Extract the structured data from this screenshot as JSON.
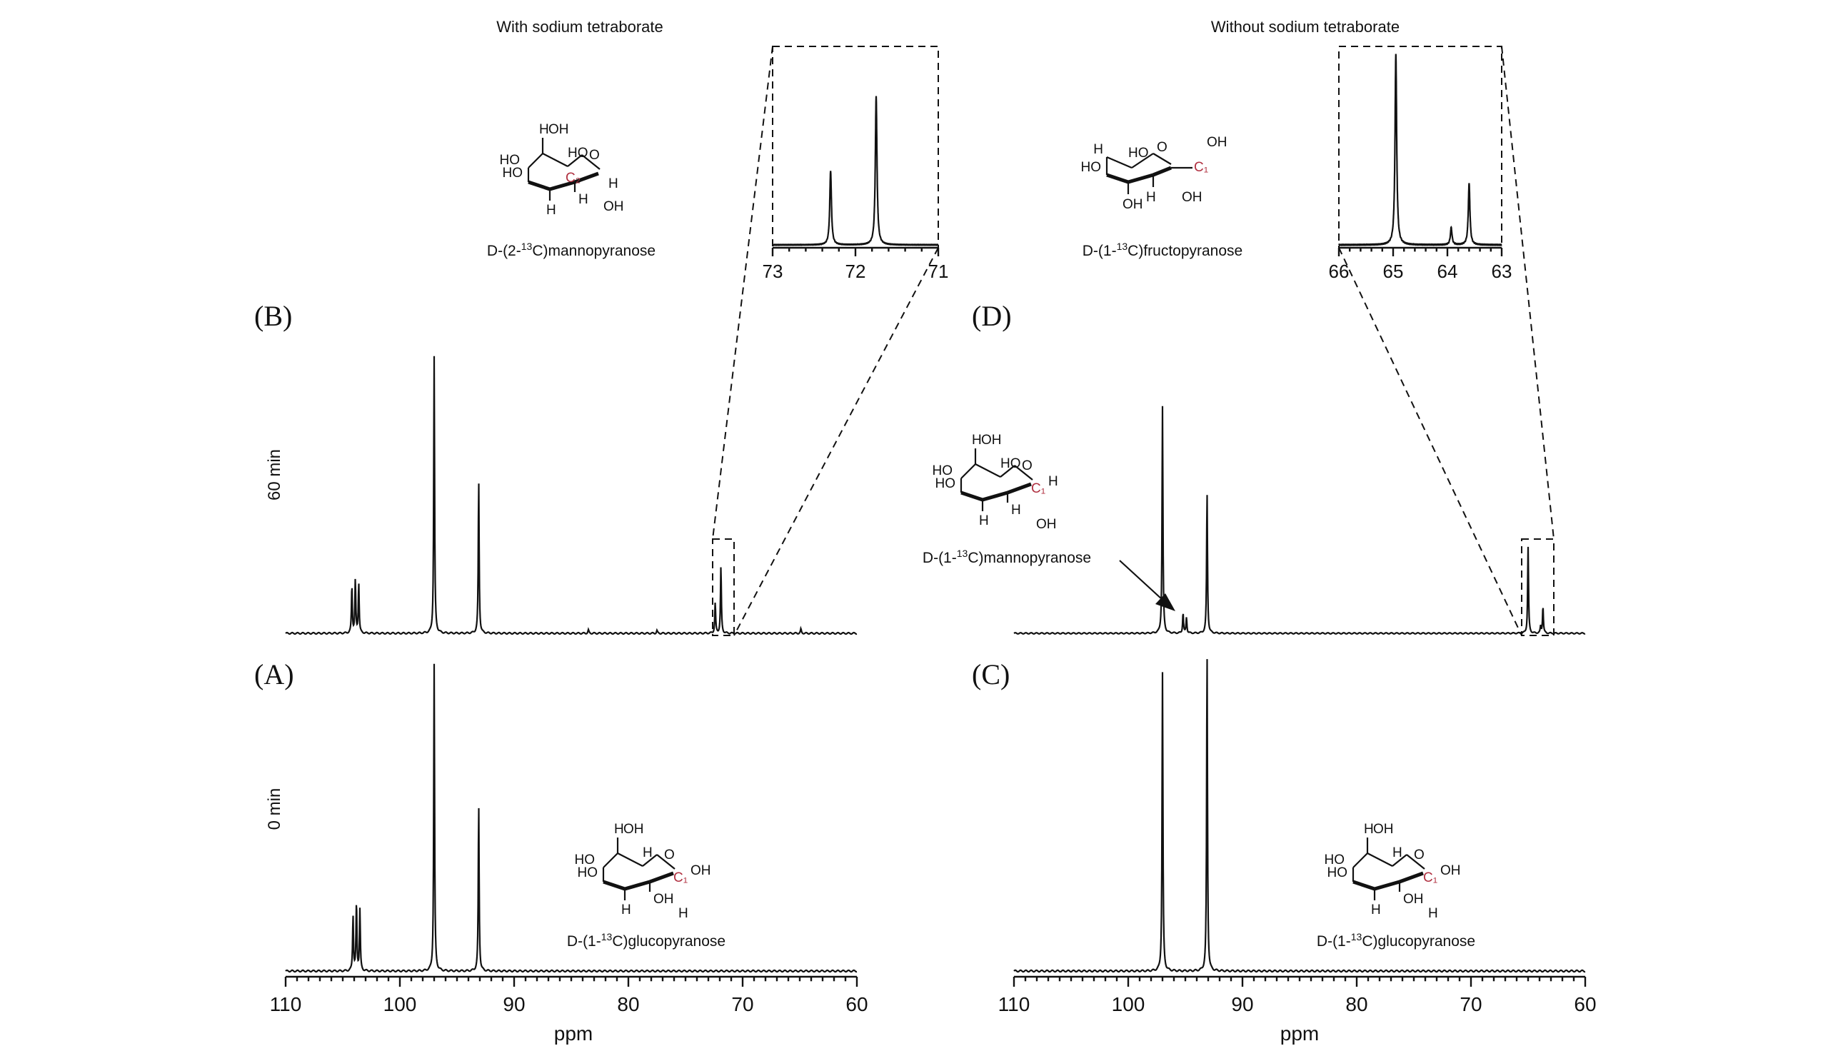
{
  "headers": {
    "left": "With sodium tetraborate",
    "right": "Without sodium tetraborate"
  },
  "time_labels": {
    "top": "60 min",
    "bottom": "0 min"
  },
  "molecules": {
    "B": {
      "prefix": "D-(2-",
      "sup": "13",
      "suffix": "C)mannopyranose",
      "atom": "C2"
    },
    "D": {
      "prefix": "D-(1-",
      "sup": "13",
      "suffix": "C)fructopyranose",
      "atom": "C1"
    },
    "D2": {
      "prefix": "D-(1-",
      "sup": "13",
      "suffix": "C)mannopyranose",
      "atom": "C1"
    },
    "A": {
      "prefix": "D-(1-",
      "sup": "13",
      "suffix": "C)glucopyranose",
      "atom": "C1"
    },
    "C": {
      "prefix": "D-(1-",
      "sup": "13",
      "suffix": "C)glucopyranose",
      "atom": "C1"
    }
  },
  "chart_data": [
    {
      "type": "line",
      "panel": "B",
      "label": "(B)",
      "xlabel": "",
      "xlim": [
        110,
        60
      ],
      "x_reversed": true,
      "peaks": [
        {
          "x": 104.2,
          "y": 0.17
        },
        {
          "x": 103.9,
          "y": 0.19
        },
        {
          "x": 103.6,
          "y": 0.18
        },
        {
          "x": 97.0,
          "y": 1.0
        },
        {
          "x": 93.1,
          "y": 0.55
        },
        {
          "x": 72.4,
          "y": 0.11
        },
        {
          "x": 71.9,
          "y": 0.24
        },
        {
          "x": 83.5,
          "y": 0.012
        },
        {
          "x": 77.5,
          "y": 0.01
        },
        {
          "x": 64.9,
          "y": 0.015
        }
      ]
    },
    {
      "type": "line",
      "panel": "B-inset",
      "xlim": [
        73,
        71
      ],
      "ticks": [
        73,
        72,
        71
      ],
      "x_reversed": true,
      "peaks": [
        {
          "x": 72.3,
          "y": 0.5
        },
        {
          "x": 71.75,
          "y": 1.0
        }
      ]
    },
    {
      "type": "line",
      "panel": "A",
      "label": "(A)",
      "xlabel": "ppm",
      "xlim": [
        110,
        60
      ],
      "x_reversed": true,
      "ticks": [
        110,
        100,
        90,
        80,
        70,
        60
      ],
      "peaks": [
        {
          "x": 104.1,
          "y": 0.18
        },
        {
          "x": 103.8,
          "y": 0.22
        },
        {
          "x": 103.5,
          "y": 0.2
        },
        {
          "x": 97.0,
          "y": 1.0
        },
        {
          "x": 93.1,
          "y": 0.54
        }
      ]
    },
    {
      "type": "line",
      "panel": "D",
      "label": "(D)",
      "xlabel": "",
      "xlim": [
        110,
        60
      ],
      "x_reversed": true,
      "peaks": [
        {
          "x": 97.0,
          "y": 1.0
        },
        {
          "x": 95.2,
          "y": 0.09
        },
        {
          "x": 94.9,
          "y": 0.07
        },
        {
          "x": 93.1,
          "y": 0.62
        },
        {
          "x": 65.0,
          "y": 0.38
        },
        {
          "x": 63.7,
          "y": 0.12
        },
        {
          "x": 63.9,
          "y": 0.03
        }
      ]
    },
    {
      "type": "line",
      "panel": "D-inset",
      "xlim": [
        66,
        63
      ],
      "ticks": [
        66,
        65,
        64,
        63
      ],
      "x_reversed": true,
      "peaks": [
        {
          "x": 64.95,
          "y": 1.0
        },
        {
          "x": 63.93,
          "y": 0.09
        },
        {
          "x": 63.6,
          "y": 0.32
        }
      ]
    },
    {
      "type": "line",
      "panel": "C",
      "label": "(C)",
      "xlabel": "ppm",
      "xlim": [
        110,
        60
      ],
      "x_reversed": true,
      "ticks": [
        110,
        100,
        90,
        80,
        70,
        60
      ],
      "peaks": [
        {
          "x": 97.0,
          "y": 0.94
        },
        {
          "x": 93.1,
          "y": 1.0
        }
      ]
    }
  ]
}
